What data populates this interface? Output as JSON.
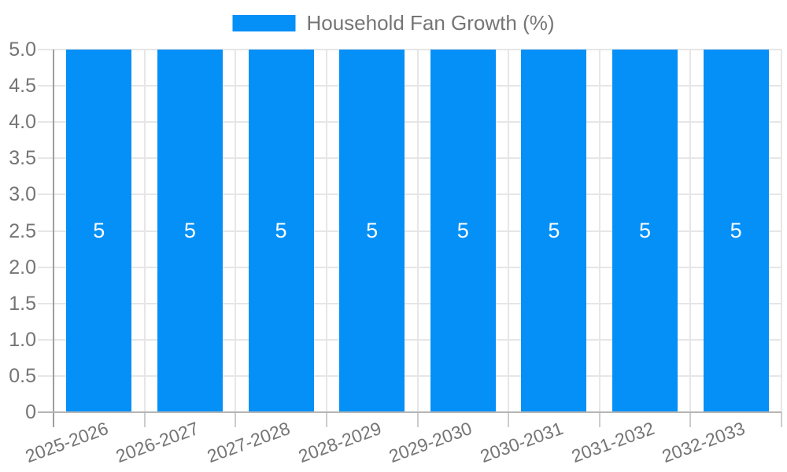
{
  "chart_data": {
    "type": "bar",
    "title": "Household Fan Growth (%)",
    "categories": [
      "2025-2026",
      "2026-2027",
      "2027-2028",
      "2028-2029",
      "2029-2030",
      "2030-2031",
      "2031-2032",
      "2032-2033"
    ],
    "series": [
      {
        "name": "Household Fan Growth (%)",
        "values": [
          5,
          5,
          5,
          5,
          5,
          5,
          5,
          5
        ]
      }
    ],
    "bar_value_labels": [
      "5",
      "5",
      "5",
      "5",
      "5",
      "5",
      "5",
      "5"
    ],
    "xlabel": "",
    "ylabel": "",
    "ylim": [
      0,
      5
    ],
    "y_ticks": [
      0,
      0.5,
      1,
      1.5,
      2,
      2.5,
      3,
      3.5,
      4,
      4.5,
      5
    ],
    "y_tick_labels": [
      "0",
      "0.5",
      "1.0",
      "1.5",
      "2.0",
      "2.5",
      "3.0",
      "3.5",
      "4.0",
      "4.5",
      "5.0"
    ],
    "grid": true,
    "legend_position": "top-center",
    "x_label_rotation_deg": -20,
    "colors": {
      "bar": "#0590f8",
      "axis_text": "#757575",
      "value_label": "#ffffff",
      "grid": "#e6e6e6",
      "grid_tick": "#cccccc",
      "axis_line": "#9e9e9e",
      "baseline": "#b5b5b5",
      "background": "#ffffff"
    }
  }
}
